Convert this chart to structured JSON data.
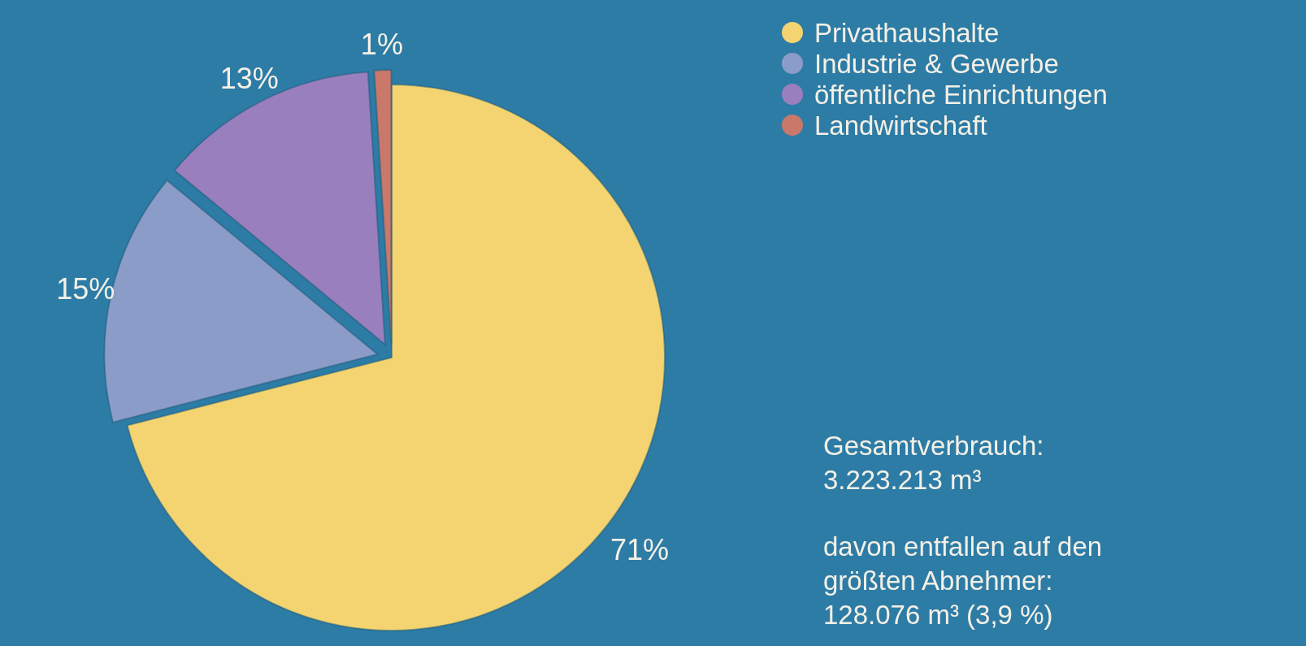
{
  "chart_data": {
    "type": "pie",
    "categories": [
      "Privathaushalte",
      "Industrie & Gewerbe",
      "öffentliche Einrichtungen",
      "Landwirtschaft"
    ],
    "values": [
      71,
      15,
      13,
      1
    ],
    "value_labels": [
      "71%",
      "15%",
      "13%",
      "1%"
    ],
    "colors": [
      "#f3d470",
      "#8c9cc8",
      "#9a7fbf",
      "#c9786a"
    ],
    "legend": "top right",
    "annotations": [
      "Gesamtverbrauch: 3.223.213 m³",
      "davon entfallen auf den größten Abnehmer: 128.076 m³ (3,9 %)"
    ]
  }
}
